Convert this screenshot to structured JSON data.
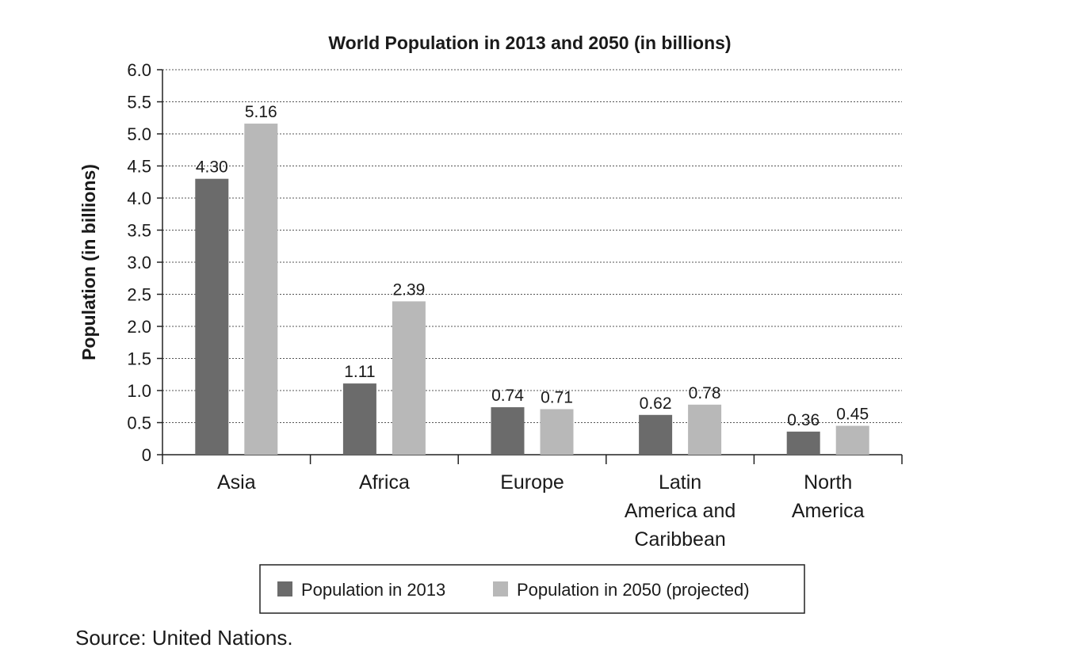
{
  "chart_data": {
    "type": "bar",
    "title": "World Population in 2013 and 2050 (in billions)",
    "xlabel": "",
    "ylabel": "Population (in billions)",
    "ylim": [
      0,
      6.0
    ],
    "yticks": [
      "0",
      "0.5",
      "1.0",
      "1.5",
      "2.0",
      "2.5",
      "3.0",
      "3.5",
      "4.0",
      "4.5",
      "5.0",
      "5.5",
      "6.0"
    ],
    "categories": [
      [
        "Asia"
      ],
      [
        "Africa"
      ],
      [
        "Europe"
      ],
      [
        "Latin",
        "America and",
        "Caribbean"
      ],
      [
        "North",
        "America"
      ]
    ],
    "series": [
      {
        "name": "Population in 2013",
        "color": "#6b6b6b",
        "values": [
          4.3,
          1.11,
          0.74,
          0.62,
          0.36
        ],
        "labels": [
          "4.30",
          "1.11",
          "0.74",
          "0.62",
          "0.36"
        ]
      },
      {
        "name": "Population in 2050 (projected)",
        "color": "#b8b8b8",
        "values": [
          5.16,
          2.39,
          0.71,
          0.78,
          0.45
        ],
        "labels": [
          "5.16",
          "2.39",
          "0.71",
          "0.78",
          "0.45"
        ]
      }
    ],
    "grid": true,
    "legend_position": "bottom"
  },
  "source": "Source: United Nations."
}
